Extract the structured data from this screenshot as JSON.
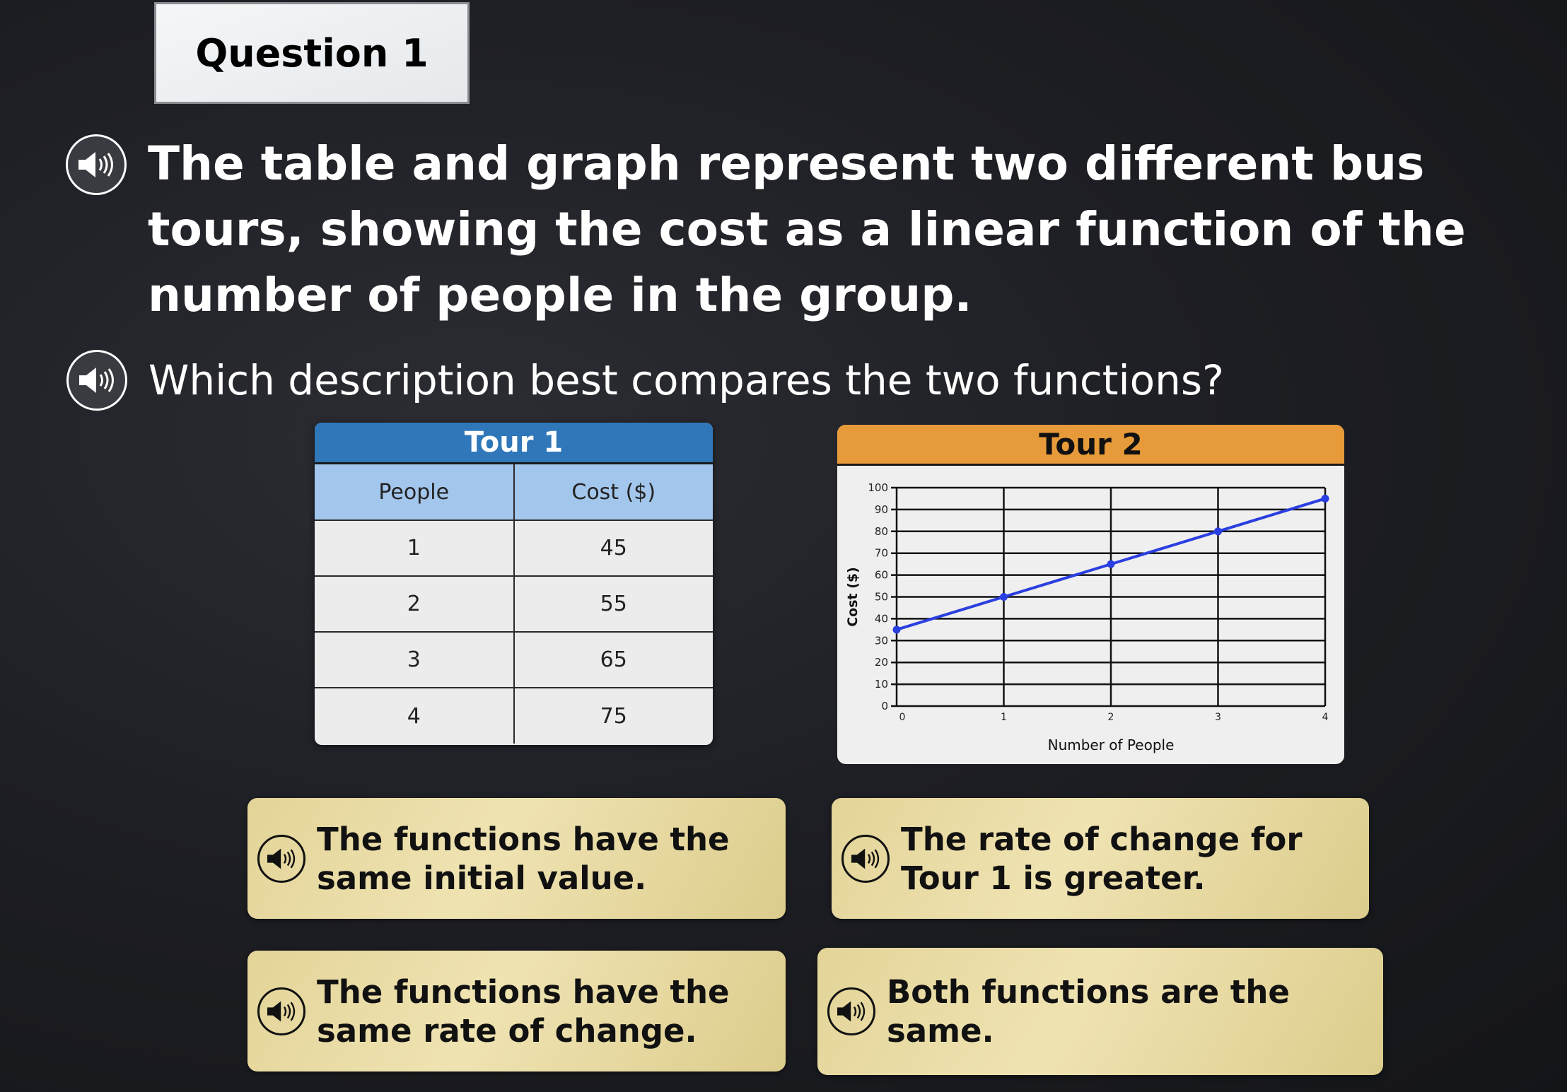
{
  "question_label": "Question 1",
  "prompt": "The table and graph represent two different bus tours, showing the cost as a linear function of the number of people in the group.",
  "sub_prompt": "Which description best compares the two functions?",
  "icons": {
    "audio": "speaker-icon"
  },
  "table": {
    "title": "Tour 1",
    "headers": [
      "People",
      "Cost  ($)"
    ],
    "rows": [
      [
        "1",
        "45"
      ],
      [
        "2",
        "55"
      ],
      [
        "3",
        "65"
      ],
      [
        "4",
        "75"
      ]
    ],
    "colors": {
      "title_bg": "#2f77b8",
      "header_bg": "#a3c6ec"
    }
  },
  "chart_data": {
    "type": "line",
    "title": "Tour 2",
    "xlabel": "Number of People",
    "ylabel": "Cost  ($)",
    "x": [
      0,
      1,
      2,
      3,
      4
    ],
    "y": [
      35,
      50,
      65,
      80,
      95
    ],
    "xlim": [
      0,
      4
    ],
    "ylim": [
      0,
      100
    ],
    "xticks": [
      "0",
      "1",
      "2",
      "3",
      "4"
    ],
    "yticks": [
      "0",
      "10",
      "20",
      "30",
      "40",
      "50",
      "60",
      "70",
      "80",
      "90",
      "100"
    ],
    "grid": true,
    "color": "#2a3fe0",
    "header_color": "#e69a39"
  },
  "answers": [
    {
      "text": "The functions have the same initial value."
    },
    {
      "text": "The rate of change for Tour 1 is greater."
    },
    {
      "text": "The functions have the same rate of change."
    },
    {
      "text": "Both functions are the same."
    }
  ]
}
